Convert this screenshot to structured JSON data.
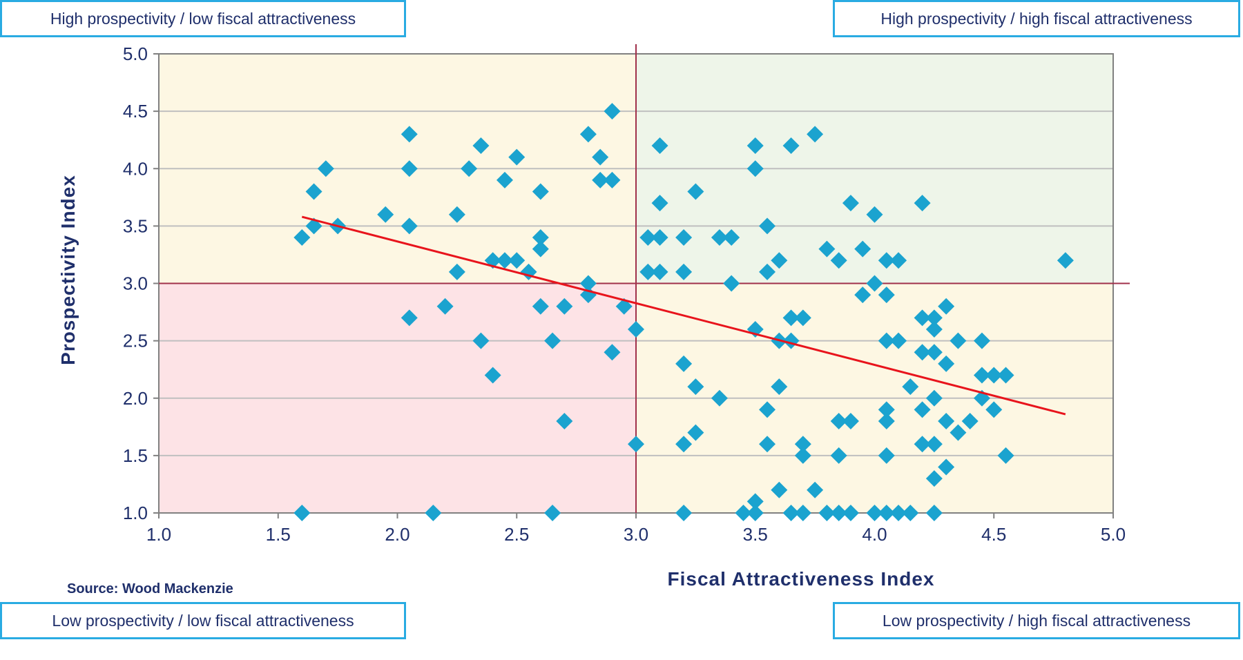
{
  "quadrants": {
    "top_left": "High prospectivity / low fiscal attractiveness",
    "top_right": "High prospectivity / high fiscal attractiveness",
    "bottom_left": "Low prospectivity / low fiscal attractiveness",
    "bottom_right": "Low prospectivity / high fiscal attractiveness"
  },
  "source": "Source: Wood Mackenzie",
  "colors": {
    "marker": "#1ba3cf",
    "trend": "#e8141c",
    "quadrant_line": "#a0304a",
    "q_low_low": "#fde3e6",
    "q_high_high": "#eef5e9",
    "q_mixed": "#fdf7e3",
    "grid": "#bfbfbf",
    "axis": "#808080"
  },
  "chart_data": {
    "type": "scatter",
    "title": "",
    "xlabel": "Fiscal Attractiveness Index",
    "ylabel": "Prospectivity Index",
    "xlim": [
      1.0,
      5.0
    ],
    "ylim": [
      1.0,
      5.0
    ],
    "xticks": [
      "1.0",
      "1.5",
      "2.0",
      "2.5",
      "3.0",
      "3.5",
      "4.0",
      "4.5",
      "5.0"
    ],
    "yticks": [
      "1.0",
      "1.5",
      "2.0",
      "2.5",
      "3.0",
      "3.5",
      "4.0",
      "4.5",
      "5.0"
    ],
    "grid": true,
    "quadrant_split": {
      "x": 3.0,
      "y": 3.0
    },
    "trendline": {
      "x": [
        1.6,
        4.8
      ],
      "y": [
        3.58,
        1.86
      ]
    },
    "points": [
      [
        1.6,
        3.4
      ],
      [
        1.65,
        3.5
      ],
      [
        1.65,
        3.8
      ],
      [
        1.7,
        4.0
      ],
      [
        1.75,
        3.5
      ],
      [
        1.6,
        1.0
      ],
      [
        1.95,
        3.6
      ],
      [
        2.05,
        4.3
      ],
      [
        2.05,
        4.0
      ],
      [
        2.05,
        3.5
      ],
      [
        2.05,
        2.7
      ],
      [
        2.15,
        1.0
      ],
      [
        2.2,
        2.8
      ],
      [
        2.25,
        3.6
      ],
      [
        2.25,
        3.1
      ],
      [
        2.3,
        4.0
      ],
      [
        2.35,
        4.2
      ],
      [
        2.35,
        2.5
      ],
      [
        2.4,
        3.2
      ],
      [
        2.4,
        2.2
      ],
      [
        2.45,
        3.9
      ],
      [
        2.45,
        3.2
      ],
      [
        2.5,
        4.1
      ],
      [
        2.5,
        3.2
      ],
      [
        2.55,
        3.1
      ],
      [
        2.6,
        3.8
      ],
      [
        2.6,
        3.4
      ],
      [
        2.6,
        3.3
      ],
      [
        2.6,
        2.8
      ],
      [
        2.65,
        2.5
      ],
      [
        2.65,
        1.0
      ],
      [
        2.7,
        2.8
      ],
      [
        2.7,
        1.8
      ],
      [
        2.8,
        4.3
      ],
      [
        2.8,
        3.0
      ],
      [
        2.8,
        2.9
      ],
      [
        2.85,
        4.1
      ],
      [
        2.85,
        3.9
      ],
      [
        2.9,
        4.5
      ],
      [
        2.9,
        3.9
      ],
      [
        2.9,
        2.4
      ],
      [
        2.95,
        2.8
      ],
      [
        3.0,
        2.6
      ],
      [
        3.0,
        1.6
      ],
      [
        3.05,
        3.4
      ],
      [
        3.05,
        3.1
      ],
      [
        3.1,
        4.2
      ],
      [
        3.1,
        3.7
      ],
      [
        3.1,
        3.4
      ],
      [
        3.1,
        3.1
      ],
      [
        3.2,
        3.4
      ],
      [
        3.2,
        3.1
      ],
      [
        3.2,
        2.3
      ],
      [
        3.2,
        1.6
      ],
      [
        3.2,
        1.0
      ],
      [
        3.25,
        3.8
      ],
      [
        3.25,
        2.1
      ],
      [
        3.25,
        1.7
      ],
      [
        3.35,
        3.4
      ],
      [
        3.35,
        2.0
      ],
      [
        3.4,
        3.4
      ],
      [
        3.4,
        3.0
      ],
      [
        3.45,
        1.0
      ],
      [
        3.5,
        4.2
      ],
      [
        3.5,
        4.0
      ],
      [
        3.5,
        2.6
      ],
      [
        3.5,
        1.1
      ],
      [
        3.5,
        1.0
      ],
      [
        3.55,
        3.5
      ],
      [
        3.55,
        3.1
      ],
      [
        3.55,
        1.9
      ],
      [
        3.55,
        1.6
      ],
      [
        3.6,
        3.2
      ],
      [
        3.6,
        2.5
      ],
      [
        3.6,
        2.1
      ],
      [
        3.6,
        1.2
      ],
      [
        3.65,
        4.2
      ],
      [
        3.65,
        2.7
      ],
      [
        3.65,
        2.5
      ],
      [
        3.65,
        1.0
      ],
      [
        3.7,
        2.7
      ],
      [
        3.7,
        1.6
      ],
      [
        3.7,
        1.5
      ],
      [
        3.7,
        1.0
      ],
      [
        3.75,
        4.3
      ],
      [
        3.75,
        1.2
      ],
      [
        3.8,
        3.3
      ],
      [
        3.8,
        1.0
      ],
      [
        3.85,
        3.2
      ],
      [
        3.85,
        1.8
      ],
      [
        3.85,
        1.5
      ],
      [
        3.85,
        1.0
      ],
      [
        3.9,
        3.7
      ],
      [
        3.9,
        1.8
      ],
      [
        3.9,
        1.0
      ],
      [
        3.95,
        3.3
      ],
      [
        3.95,
        2.9
      ],
      [
        4.0,
        3.6
      ],
      [
        4.0,
        3.0
      ],
      [
        4.0,
        1.0
      ],
      [
        4.05,
        3.2
      ],
      [
        4.05,
        2.9
      ],
      [
        4.05,
        2.5
      ],
      [
        4.05,
        1.9
      ],
      [
        4.05,
        1.8
      ],
      [
        4.05,
        1.5
      ],
      [
        4.05,
        1.0
      ],
      [
        4.1,
        3.2
      ],
      [
        4.1,
        2.5
      ],
      [
        4.1,
        1.0
      ],
      [
        4.15,
        2.1
      ],
      [
        4.15,
        1.0
      ],
      [
        4.2,
        3.7
      ],
      [
        4.2,
        2.7
      ],
      [
        4.2,
        2.4
      ],
      [
        4.2,
        1.9
      ],
      [
        4.2,
        1.6
      ],
      [
        4.25,
        2.7
      ],
      [
        4.25,
        2.6
      ],
      [
        4.25,
        2.4
      ],
      [
        4.25,
        2.0
      ],
      [
        4.25,
        1.6
      ],
      [
        4.25,
        1.3
      ],
      [
        4.25,
        1.0
      ],
      [
        4.3,
        2.8
      ],
      [
        4.3,
        2.3
      ],
      [
        4.3,
        1.8
      ],
      [
        4.3,
        1.4
      ],
      [
        4.35,
        2.5
      ],
      [
        4.35,
        1.7
      ],
      [
        4.4,
        1.8
      ],
      [
        4.45,
        2.5
      ],
      [
        4.45,
        2.2
      ],
      [
        4.45,
        2.0
      ],
      [
        4.5,
        2.2
      ],
      [
        4.5,
        1.9
      ],
      [
        4.55,
        2.2
      ],
      [
        4.55,
        1.5
      ],
      [
        4.8,
        3.2
      ]
    ]
  }
}
